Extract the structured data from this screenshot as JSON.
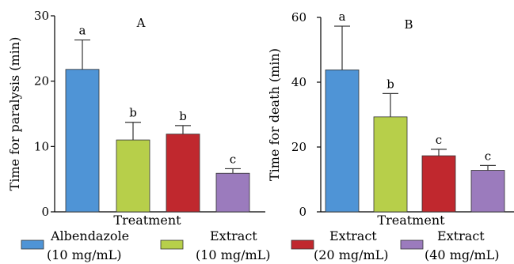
{
  "chart_data": [
    {
      "type": "bar",
      "panel_label": "A",
      "categories": [
        "Albendazole (10 mg/mL)",
        "Extract (10 mg/mL)",
        "Extract (20 mg/mL)",
        "Extract (40 mg/mL)"
      ],
      "values": [
        21.8,
        11.0,
        11.9,
        5.9
      ],
      "errors": [
        4.5,
        2.7,
        1.3,
        0.7
      ],
      "significance": [
        "a",
        "b",
        "b",
        "c"
      ],
      "colors": [
        "#4f94d6",
        "#b7cf4a",
        "#c0282e",
        "#9b7bbd"
      ],
      "xlabel": "Treatment",
      "ylabel": "Time for paralysis (min)",
      "ylim": [
        0,
        30
      ],
      "yticks": [
        0,
        10,
        20,
        30
      ]
    },
    {
      "type": "bar",
      "panel_label": "B",
      "categories": [
        "Albendazole (10 mg/mL)",
        "Extract (10 mg/mL)",
        "Extract (20 mg/mL)",
        "Extract (40 mg/mL)"
      ],
      "values": [
        43.8,
        29.3,
        17.3,
        12.8
      ],
      "errors": [
        13.5,
        7.2,
        2.0,
        1.5
      ],
      "significance": [
        "a",
        "b",
        "c",
        "c"
      ],
      "colors": [
        "#4f94d6",
        "#b7cf4a",
        "#c0282e",
        "#9b7bbd"
      ],
      "xlabel": "Treatment",
      "ylabel": "Time for death (min)",
      "ylim": [
        0,
        60
      ],
      "yticks": [
        0,
        20,
        40,
        60
      ]
    }
  ],
  "legend": [
    {
      "line1": "Albendazole",
      "line2": "(10 mg/mL)",
      "color": "#4f94d6"
    },
    {
      "line1": "Extract",
      "line2": "(10 mg/mL)",
      "color": "#b7cf4a"
    },
    {
      "line1": "Extract",
      "line2": "(20 mg/mL)",
      "color": "#c0282e"
    },
    {
      "line1": "Extract",
      "line2": "(40 mg/mL)",
      "color": "#9b7bbd"
    }
  ]
}
